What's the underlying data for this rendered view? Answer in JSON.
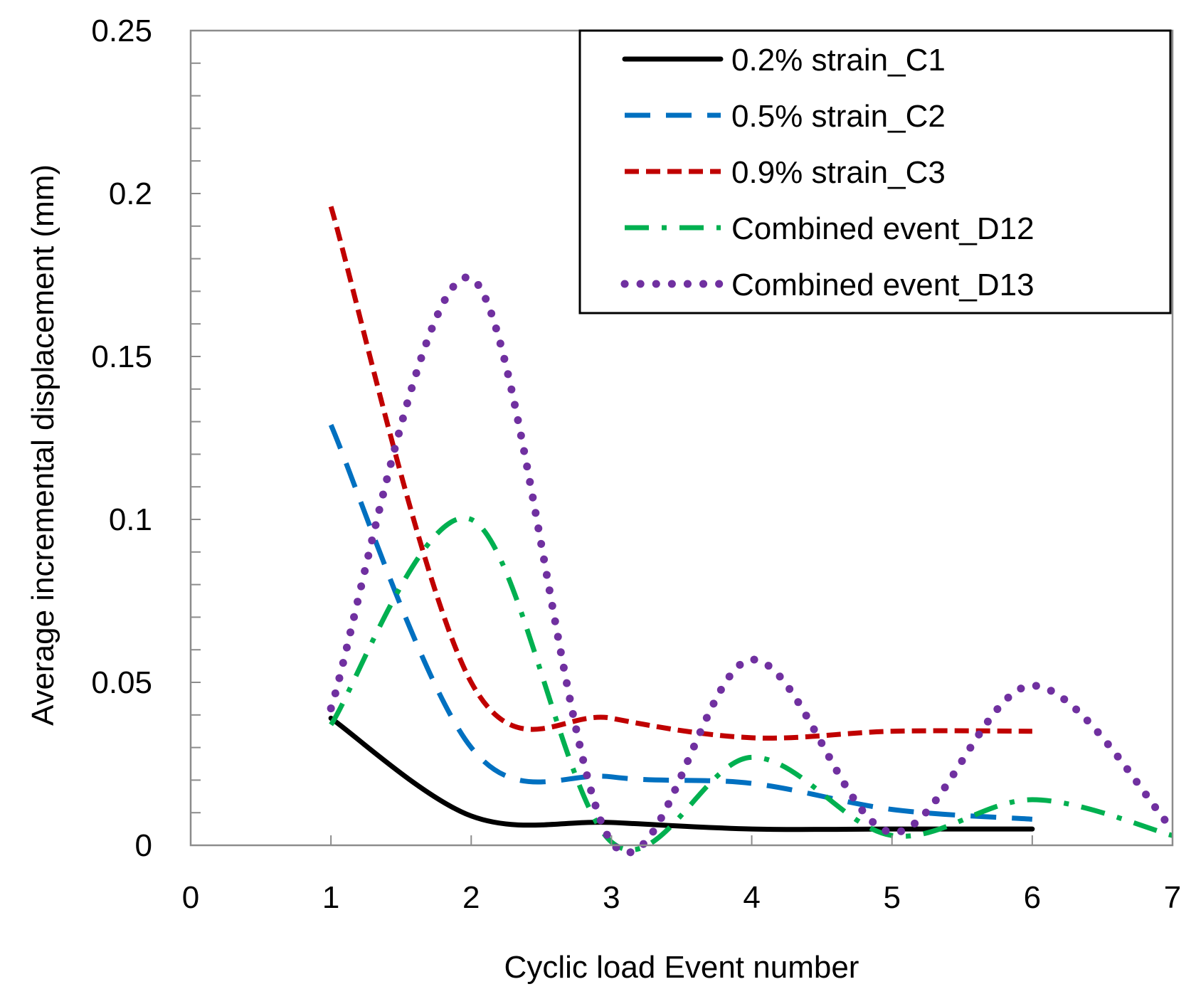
{
  "chart_data": {
    "type": "line",
    "title": "",
    "xlabel": "Cyclic load Event number",
    "ylabel": "Average incremental displacement (mm)",
    "xlim": [
      0,
      7
    ],
    "ylim": [
      0,
      0.25
    ],
    "x_ticks": [
      0,
      1,
      2,
      3,
      4,
      5,
      6,
      7
    ],
    "y_ticks": [
      0,
      0.05,
      0.1,
      0.15,
      0.2,
      0.25
    ],
    "x_tick_labels": [
      "0",
      "1",
      "2",
      "3",
      "4",
      "5",
      "6",
      "7"
    ],
    "y_tick_labels": [
      "0",
      "0.05",
      "0.1",
      "0.15",
      "0.2",
      "0.25"
    ],
    "y_minor_step": 0.01,
    "grid": false,
    "legend_position": "top-right",
    "smoothed": true,
    "series": [
      {
        "name": "0.2% strain_C1",
        "color": "#000000",
        "style": "solid",
        "x": [
          1,
          2,
          3,
          4,
          5,
          6
        ],
        "y": [
          0.039,
          0.009,
          0.007,
          0.005,
          0.005,
          0.005
        ]
      },
      {
        "name": "0.5% strain_C2",
        "color": "#0070C0",
        "style": "long-dash",
        "x": [
          1,
          2,
          3,
          4,
          5,
          6
        ],
        "y": [
          0.129,
          0.03,
          0.021,
          0.019,
          0.011,
          0.008
        ]
      },
      {
        "name": "0.9% strain_C3",
        "color": "#C00000",
        "style": "dash",
        "x": [
          1,
          2,
          3,
          4,
          5,
          6
        ],
        "y": [
          0.196,
          0.05,
          0.039,
          0.033,
          0.035,
          0.035
        ]
      },
      {
        "name": "Combined event_D12",
        "color": "#00B050",
        "style": "dash-dot",
        "x": [
          1,
          2,
          3,
          4,
          5,
          6,
          7
        ],
        "y": [
          0.037,
          0.1,
          0.001,
          0.027,
          0.003,
          0.014,
          0.003
        ]
      },
      {
        "name": "Combined event_D13",
        "color": "#7030A0",
        "style": "dot",
        "x": [
          1,
          2,
          3,
          4,
          5,
          6,
          7
        ],
        "y": [
          0.042,
          0.174,
          0.001,
          0.057,
          0.004,
          0.049,
          0.005
        ]
      }
    ]
  }
}
